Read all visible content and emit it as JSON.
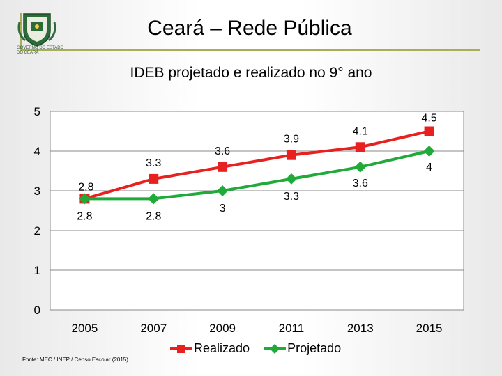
{
  "slide": {
    "title": "Ceará – Rede Pública",
    "logo_text": "GOVERNO DO ESTADO DO CEARÁ",
    "source": "Fonte: MEC / INEP / Censo Escolar (2015)"
  },
  "chart_data": {
    "type": "line",
    "title": "IDEB projetado e realizado no 9° ano",
    "categories": [
      "2005",
      "2007",
      "2009",
      "2011",
      "2013",
      "2015"
    ],
    "ylim": [
      0,
      5
    ],
    "yticks": [
      "0",
      "1",
      "2",
      "3",
      "4",
      "5"
    ],
    "series": [
      {
        "name": "Realizado",
        "color": "#e8201f",
        "marker": "square",
        "values": [
          2.8,
          3.3,
          3.6,
          3.9,
          4.1,
          4.5
        ],
        "labels": [
          "2.8",
          "3.3",
          "3.6",
          "3.9",
          "4.1",
          "4.5"
        ]
      },
      {
        "name": "Projetado",
        "color": "#1faa3a",
        "marker": "diamond",
        "values": [
          2.8,
          2.8,
          3.0,
          3.3,
          3.6,
          4.0
        ],
        "labels": [
          "2.8",
          "2.8",
          "3",
          "3.3",
          "3.6",
          "4"
        ]
      }
    ],
    "legend": "bottom",
    "grid": "horizontal"
  }
}
